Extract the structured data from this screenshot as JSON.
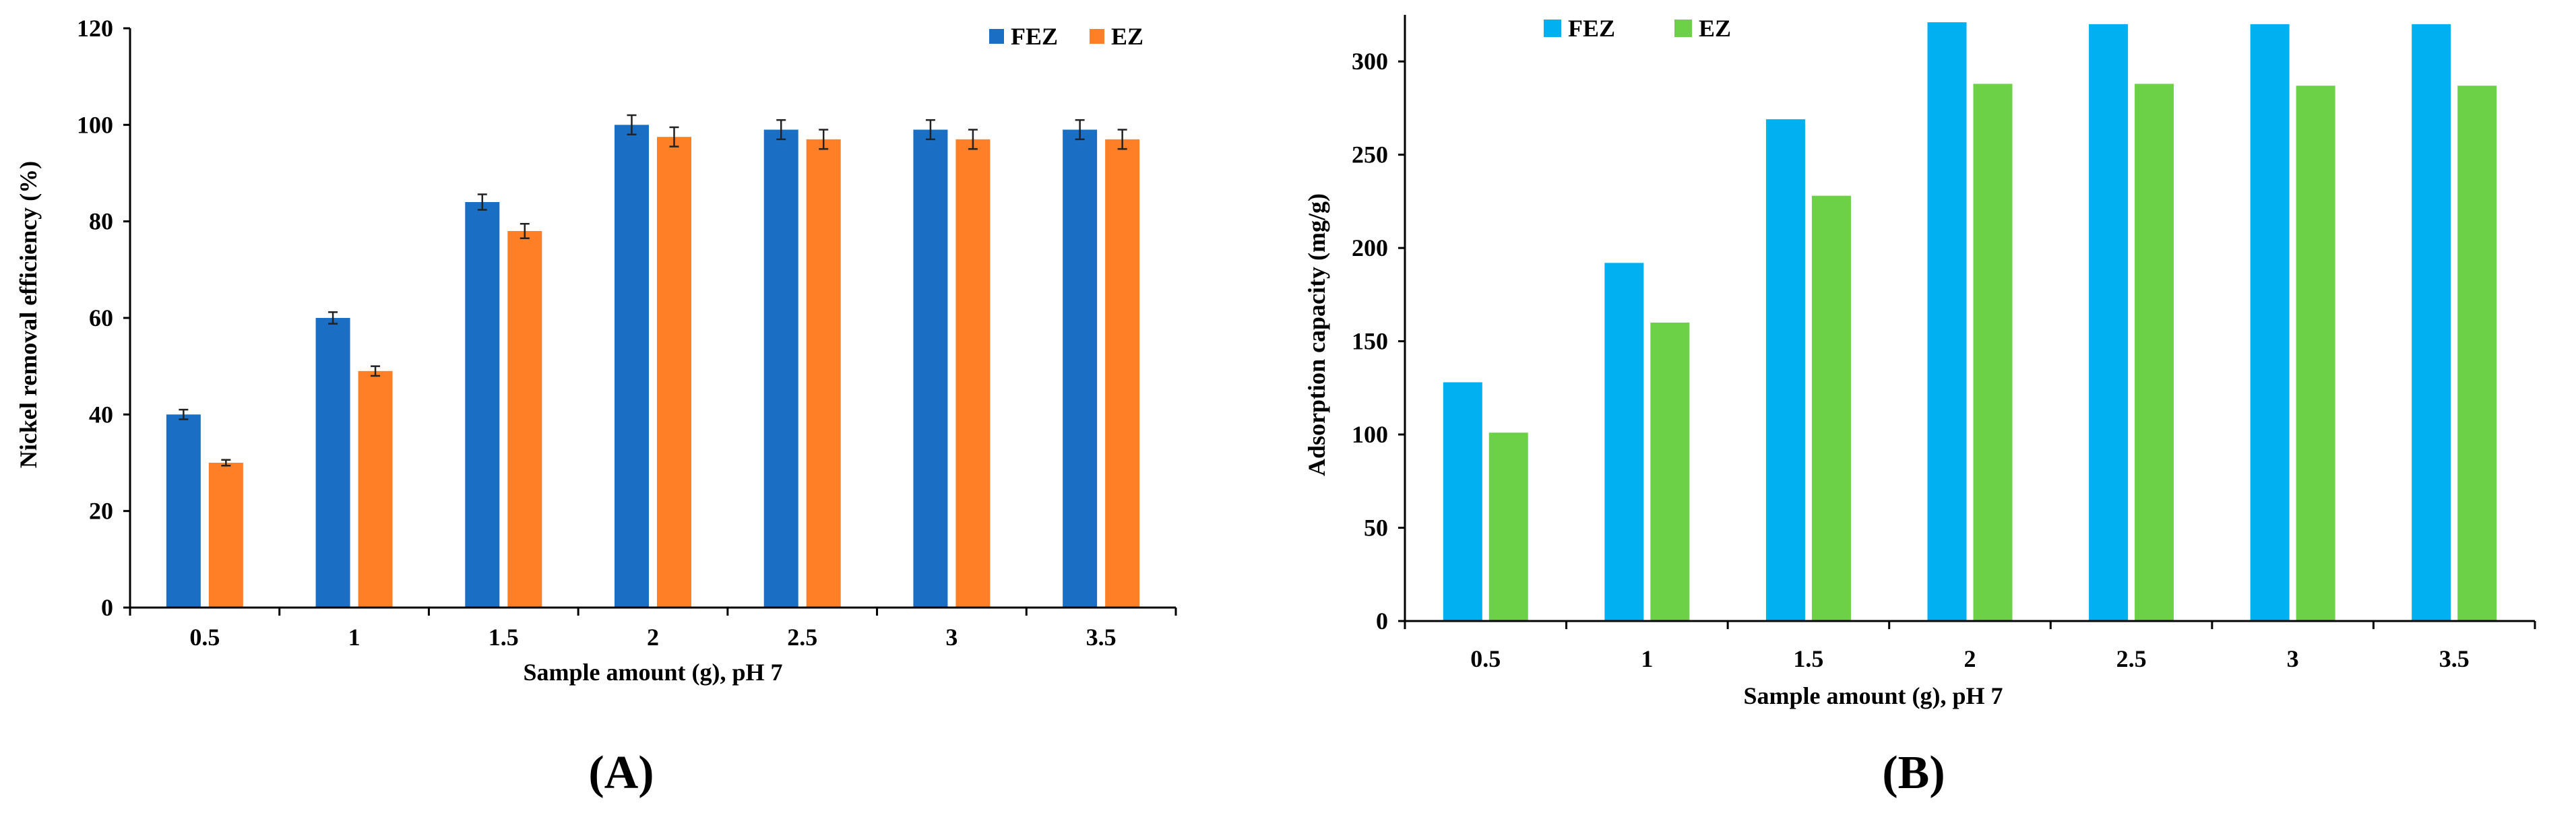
{
  "chart_data": [
    {
      "panel": "A",
      "panel_label": "(A)",
      "type": "bar",
      "categories": [
        "0.5",
        "1",
        "1.5",
        "2",
        "2.5",
        "3",
        "3.5"
      ],
      "series": [
        {
          "name": "FEZ",
          "color": "#1A6FC4",
          "values": [
            40,
            60,
            84,
            100,
            99,
            99,
            99
          ],
          "errors": [
            1,
            1.2,
            1.6,
            2,
            2,
            2,
            2
          ]
        },
        {
          "name": "EZ",
          "color": "#FF7F27",
          "values": [
            30,
            49,
            78,
            97.5,
            97,
            97,
            97
          ],
          "errors": [
            0.6,
            1,
            1.5,
            2,
            2,
            2,
            2
          ]
        }
      ],
      "title": "",
      "xlabel": "Sample amount (g), pH 7",
      "ylabel": "Nickel removal efficiency (%)",
      "ylim": [
        0,
        120
      ],
      "yticks": [
        "0",
        "20",
        "40",
        "60",
        "80",
        "100",
        "120"
      ],
      "grid": false,
      "legend_position": "top-right"
    },
    {
      "panel": "B",
      "panel_label": "(B)",
      "type": "bar",
      "categories": [
        "0.5",
        "1",
        "1.5",
        "2",
        "2.5",
        "3",
        "3.5"
      ],
      "series": [
        {
          "name": "FEZ",
          "color": "#00B0F0",
          "values": [
            128,
            192,
            269,
            321,
            320,
            320,
            320
          ]
        },
        {
          "name": "EZ",
          "color": "#6DD147",
          "values": [
            101,
            160,
            228,
            288,
            288,
            287,
            287
          ]
        }
      ],
      "title": "",
      "xlabel": "Sample amount (g), pH 7",
      "ylabel": "Adsorption capacity (mg/g)",
      "ylim": [
        0,
        325
      ],
      "yticks": [
        "0",
        "50",
        "100",
        "150",
        "200",
        "250",
        "300"
      ],
      "grid": false,
      "legend_position": "top-left"
    }
  ]
}
